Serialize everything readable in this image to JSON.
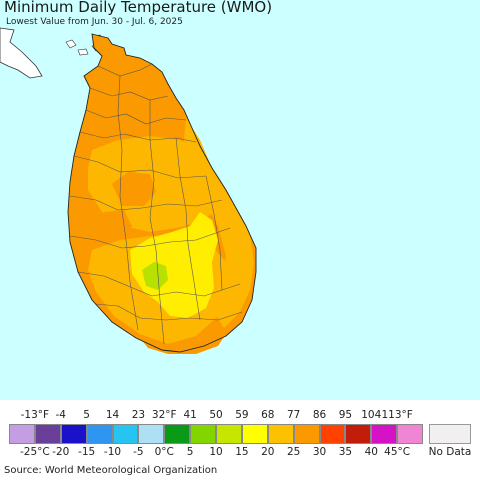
{
  "header": {
    "title": "Minimum Daily Temperature (WMO)",
    "subtitle": "Lowest Value from Jun. 30 - Jul. 6, 2025"
  },
  "map": {
    "ocean_color": "#ccffff",
    "land_color": "#ffffff",
    "border_color": "#555555",
    "regions": [
      {
        "name": "north-peninsula",
        "color": "#fa9a00"
      },
      {
        "name": "north-central",
        "color": "#fdb700"
      },
      {
        "name": "inland-warm-patch",
        "color": "#fa9a00"
      },
      {
        "name": "west-coast",
        "color": "#fa9a00"
      },
      {
        "name": "east-coast",
        "color": "#fdb700"
      },
      {
        "name": "central-highlands",
        "color": "#ffee00"
      },
      {
        "name": "cool-highland-patch",
        "color": "#b8e000"
      },
      {
        "name": "south-coast",
        "color": "#fa9a00"
      }
    ]
  },
  "legend": {
    "fahrenheit_labels": [
      "-13°F",
      "-4",
      "5",
      "14",
      "23",
      "32°F",
      "41",
      "50",
      "59",
      "68",
      "77",
      "86",
      "95",
      "104",
      "113°F"
    ],
    "celsius_labels": [
      "-25°C",
      "-20",
      "-15",
      "-10",
      "-5",
      "0°C",
      "5",
      "10",
      "15",
      "20",
      "25",
      "30",
      "35",
      "40",
      "45°C"
    ],
    "colors": [
      "#c39ee3",
      "#6a3f9a",
      "#1a12c9",
      "#2e95f0",
      "#27c4f2",
      "#aee0f5",
      "#0b9a18",
      "#83d500",
      "#c6e600",
      "#ffff00",
      "#fcc200",
      "#fa9a00",
      "#ff4200",
      "#c11d0a",
      "#d512c6",
      "#f086d3"
    ],
    "no_data_label": "No Data",
    "no_data_color": "#f1eff0"
  },
  "footer": {
    "source": "Source: World Meteorological Organization"
  }
}
